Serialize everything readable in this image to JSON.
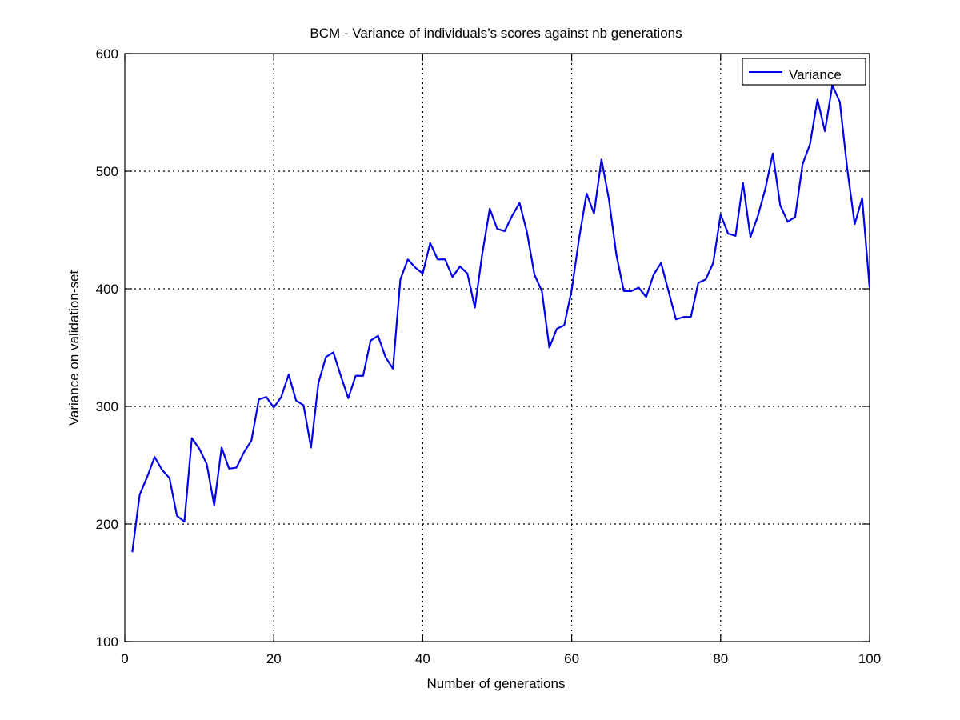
{
  "chart_data": {
    "type": "line",
    "title": "BCM - Variance of individuals’s scores against nb generations",
    "xlabel": "Number of generations",
    "ylabel": "Variance on validation-set",
    "xlim": [
      0,
      100
    ],
    "ylim": [
      100,
      600
    ],
    "xticks": [
      0,
      20,
      40,
      60,
      80,
      100
    ],
    "yticks": [
      100,
      200,
      300,
      400,
      500,
      600
    ],
    "grid": true,
    "legend_position": "top-right",
    "series": [
      {
        "name": "Variance",
        "color": "#0000ee",
        "x": [
          1,
          2,
          3,
          4,
          5,
          6,
          7,
          8,
          9,
          10,
          11,
          12,
          13,
          14,
          15,
          16,
          17,
          18,
          19,
          20,
          21,
          22,
          23,
          24,
          25,
          26,
          27,
          28,
          29,
          30,
          31,
          32,
          33,
          34,
          35,
          36,
          37,
          38,
          39,
          40,
          41,
          42,
          43,
          44,
          45,
          46,
          47,
          48,
          49,
          50,
          51,
          52,
          53,
          54,
          55,
          56,
          57,
          58,
          59,
          60,
          61,
          62,
          63,
          64,
          65,
          66,
          67,
          68,
          69,
          70,
          71,
          72,
          73,
          74,
          75,
          76,
          77,
          78,
          79,
          80,
          81,
          82,
          83,
          84,
          85,
          86,
          87,
          88,
          89,
          90,
          91,
          92,
          93,
          94,
          95,
          96,
          97,
          98,
          99,
          100
        ],
        "values": [
          176,
          225,
          240,
          257,
          246,
          239,
          207,
          202,
          273,
          264,
          251,
          216,
          265,
          247,
          248,
          261,
          271,
          306,
          308,
          299,
          308,
          327,
          305,
          301,
          265,
          320,
          342,
          346,
          326,
          307,
          326,
          326,
          356,
          360,
          342,
          332,
          408,
          425,
          418,
          413,
          439,
          425,
          425,
          410,
          419,
          413,
          384,
          430,
          468,
          451,
          449,
          462,
          473,
          448,
          412,
          398,
          350,
          366,
          369,
          399,
          443,
          481,
          464,
          510,
          476,
          429,
          398,
          398,
          401,
          393,
          412,
          422,
          398,
          374,
          376,
          376,
          405,
          408,
          422,
          463,
          447,
          445,
          490,
          444,
          462,
          485,
          515,
          471,
          457,
          461,
          506,
          523,
          561,
          534,
          573,
          559,
          502,
          455,
          477,
          401
        ]
      }
    ]
  }
}
